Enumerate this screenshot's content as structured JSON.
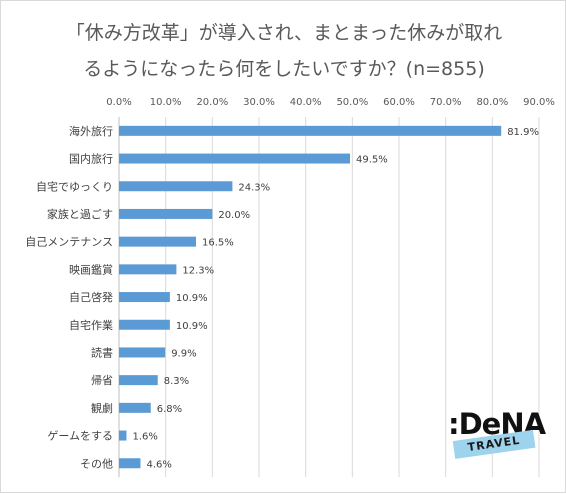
{
  "chart_data": {
    "type": "bar",
    "orientation": "horizontal",
    "title_lines": [
      "「休み方改革」が導入され、まとまった休みが取れ",
      "るようになったら何をしたいですか？(n=855)"
    ],
    "categories": [
      "海外旅行",
      "国内旅行",
      "自宅でゆっくり",
      "家族と過ごす",
      "自己メンテナンス",
      "映画鑑賞",
      "自己啓発",
      "自宅作業",
      "読書",
      "帰省",
      "観劇",
      "ゲームをする",
      "その他"
    ],
    "values": [
      81.9,
      49.5,
      24.3,
      20.0,
      16.5,
      12.3,
      10.9,
      10.9,
      9.9,
      8.3,
      6.8,
      1.6,
      4.6
    ],
    "value_labels": [
      "81.9%",
      "49.5%",
      "24.3%",
      "20.0%",
      "16.5%",
      "12.3%",
      "10.9%",
      "10.9%",
      "9.9%",
      "8.3%",
      "6.8%",
      "1.6%",
      "4.6%"
    ],
    "x_ticks": [
      "0.0%",
      "10.0%",
      "20.0%",
      "30.0%",
      "40.0%",
      "50.0%",
      "60.0%",
      "70.0%",
      "80.0%",
      "90.0%"
    ],
    "xlim": [
      0,
      90
    ],
    "x_axis_position": "top",
    "grid": true,
    "legend": "none",
    "bar_color": "#5b9bd5"
  },
  "logo": {
    "wordmark": ":DeNA",
    "badge": "TRAVEL",
    "badge_color": "#9dd3ec"
  }
}
